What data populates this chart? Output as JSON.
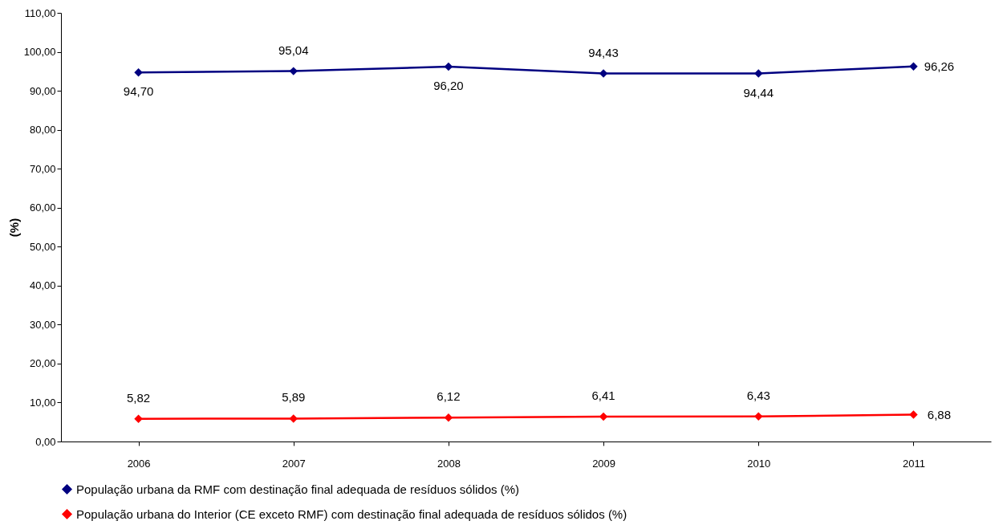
{
  "chart_data": {
    "type": "line",
    "ylabel": "(%)",
    "categories": [
      "2006",
      "2007",
      "2008",
      "2009",
      "2010",
      "2011"
    ],
    "series": [
      {
        "name": "População urbana da RMF com destinação final adequada de resíduos sólidos (%)",
        "color": "#000080",
        "values": [
          94.7,
          95.04,
          96.2,
          94.43,
          94.44,
          96.26
        ],
        "value_labels": [
          "94,70",
          "95,04",
          "96,20",
          "94,43",
          "94,44",
          "96,26"
        ]
      },
      {
        "name": "População urbana do Interior (CE exceto RMF) com destinação final adequada de resíduos sólidos (%)",
        "color": "#ff0000",
        "values": [
          5.82,
          5.89,
          6.12,
          6.41,
          6.43,
          6.88
        ],
        "value_labels": [
          "5,82",
          "5,89",
          "6,12",
          "6,41",
          "6,43",
          "6,88"
        ]
      }
    ],
    "ylim": [
      0,
      110
    ],
    "yticks": [
      {
        "value": 0,
        "label": "0,00"
      },
      {
        "value": 10,
        "label": "10,00"
      },
      {
        "value": 20,
        "label": "20,00"
      },
      {
        "value": 30,
        "label": "30,00"
      },
      {
        "value": 40,
        "label": "40,00"
      },
      {
        "value": 50,
        "label": "50,00"
      },
      {
        "value": 60,
        "label": "60,00"
      },
      {
        "value": 70,
        "label": "70,00"
      },
      {
        "value": 80,
        "label": "80,00"
      },
      {
        "value": 90,
        "label": "90,00"
      },
      {
        "value": 100,
        "label": "100,00"
      },
      {
        "value": 110,
        "label": "110,00"
      }
    ],
    "grid": false,
    "legend": "bottom",
    "marker": "diamond",
    "line_style": "solid"
  }
}
